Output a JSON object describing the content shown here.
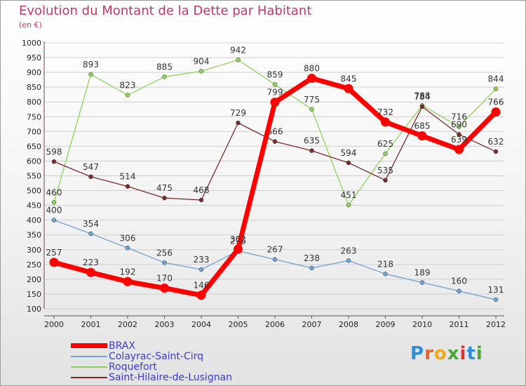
{
  "title": "Evolution du Montant de la Dette par Habitant",
  "subtitle": "(en €)",
  "logo_text": "Proxiti",
  "colors": {
    "title": "#c0396a",
    "legend_text": "#3b3bd1",
    "grid": "#cfcfcf",
    "brax": "#ff0000",
    "colayrac": "#6fa3d1",
    "roquefort": "#8ed45a",
    "saint_hilaire": "#7a2c2c"
  },
  "chart_data": {
    "type": "line",
    "title": "Evolution du Montant de la Dette par Habitant",
    "ylabel": "(en €)",
    "xlabel": "",
    "x": [
      "2000",
      "2001",
      "2002",
      "2003",
      "2004",
      "2005",
      "2006",
      "2007",
      "2008",
      "2009",
      "2010",
      "2011",
      "2012"
    ],
    "ylim": [
      100,
      1000
    ],
    "yticks": [
      "100",
      "150",
      "200",
      "250",
      "300",
      "350",
      "400",
      "450",
      "500",
      "550",
      "600",
      "650",
      "700",
      "750",
      "800",
      "850",
      "900",
      "950",
      "1000"
    ],
    "grid": true,
    "legend_position": "bottom-left",
    "series": [
      {
        "name": "BRAX",
        "color": "#ff0000",
        "width": 7,
        "values": [
          257,
          223,
          192,
          170,
          146,
          302,
          799,
          880,
          845,
          732,
          685,
          639,
          766
        ]
      },
      {
        "name": "Colayrac-Saint-Cirq",
        "color": "#6fa3d1",
        "width": 1.3,
        "values": [
          400,
          354,
          306,
          256,
          233,
          296,
          267,
          238,
          263,
          218,
          189,
          160,
          131
        ]
      },
      {
        "name": "Roquefort",
        "color": "#8ed45a",
        "width": 1.3,
        "values": [
          460,
          893,
          823,
          885,
          904,
          942,
          859,
          775,
          451,
          625,
          788,
          716,
          844
        ]
      },
      {
        "name": "Saint-Hilaire-de-Lusignan",
        "color": "#7a2c2c",
        "width": 1.3,
        "values": [
          598,
          547,
          514,
          475,
          468,
          729,
          666,
          635,
          594,
          535,
          784,
          690,
          632
        ]
      }
    ]
  }
}
